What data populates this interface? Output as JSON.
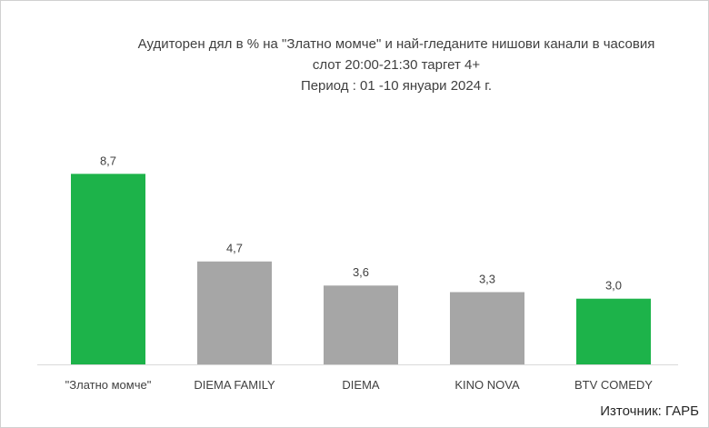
{
  "chart_data": {
    "type": "bar",
    "title": [
      "Аудиторен дял в % на \"Златно момче\" и най-гледаните нишови канали в часовия",
      "слот 20:00-21:30 таргет 4+",
      "Период : 01 -10 януари 2024 г."
    ],
    "categories": [
      "\"Златно момче\"",
      "DIEMA FAMILY",
      "DIEMA",
      "KINO NOVA",
      "BTV COMEDY"
    ],
    "values": [
      8.7,
      4.7,
      3.6,
      3.3,
      3.0
    ],
    "value_labels": [
      "8,7",
      "4,7",
      "3,6",
      "3,3",
      "3,0"
    ],
    "bar_colors": [
      "#1db34a",
      "#a6a6a6",
      "#a6a6a6",
      "#a6a6a6",
      "#1db34a"
    ],
    "xlabel": "",
    "ylabel": "",
    "ylim": [
      0,
      10
    ],
    "grid": false,
    "legend": "none"
  },
  "colors": {
    "highlight": "#1db34a",
    "other": "#a6a6a6",
    "axis": "#d9d9d9",
    "text": "#404040"
  },
  "source": "Източник: ГАРБ"
}
